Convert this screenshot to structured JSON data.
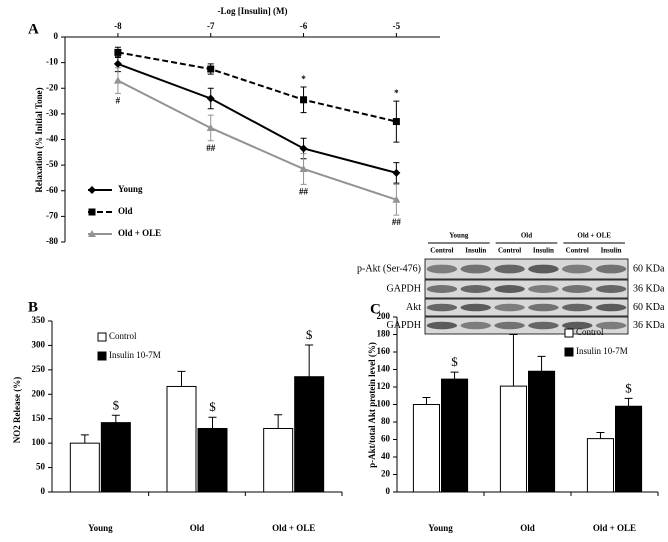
{
  "chart_data": [
    {
      "type": "line",
      "panel_label": "A",
      "x_label": "-Log [Insulin] (M)",
      "y_label": "Relaxation (% Initial Tone)",
      "x": [
        -8,
        -7,
        -6,
        -5
      ],
      "xlim": [
        -8.57,
        -4.53
      ],
      "xticks": [
        -8,
        -7,
        -6,
        -5
      ],
      "ylim": [
        -80,
        0
      ],
      "yticks": [
        0,
        -10,
        -20,
        -30,
        -40,
        -50,
        -60,
        -70,
        -80
      ],
      "legend": "left",
      "series": [
        {
          "name": "Young",
          "color": "#000000",
          "dash": "solid",
          "marker": "diamond",
          "values": [
            -10.5,
            -24,
            -43.5,
            -53
          ],
          "errors": [
            3,
            4,
            4,
            4
          ]
        },
        {
          "name": "Old",
          "color": "#000000",
          "dash": "dashed",
          "marker": "square",
          "values": [
            -6,
            -12.5,
            -24.5,
            -33
          ],
          "errors": [
            2,
            2,
            5,
            8
          ],
          "annotations": [
            null,
            null,
            "*",
            "*"
          ]
        },
        {
          "name": "Old + OLE",
          "color": "#939393",
          "dash": "solid",
          "marker": "triangle",
          "values": [
            -17,
            -35.5,
            -51.5,
            -63.5
          ],
          "errors": [
            5,
            5,
            6,
            6
          ],
          "annotations": [
            "#",
            "##",
            "##",
            "##"
          ]
        }
      ]
    },
    {
      "type": "bar",
      "panel_label": "B",
      "y_label": "NO2 Release (%)",
      "categories": [
        "Young",
        "Old",
        "Old + OLE"
      ],
      "ylim": [
        0,
        350
      ],
      "yticks": [
        0,
        50,
        100,
        150,
        200,
        250,
        300,
        350
      ],
      "legend": "upper left",
      "series": [
        {
          "name": "Control",
          "color": "#ffffff",
          "values": [
            100,
            216,
            130
          ],
          "errors": [
            17,
            31,
            28
          ]
        },
        {
          "name": "Insulin 10-7M",
          "color": "#000000",
          "values": [
            142,
            130,
            236
          ],
          "errors": [
            15,
            23,
            65
          ],
          "annotations": [
            "$",
            "$",
            "$"
          ]
        }
      ]
    },
    {
      "type": "bar",
      "panel_label": "C",
      "y_label": "p-Akt/total Akt protein level (%)",
      "categories": [
        "Young",
        "Old",
        "Old + OLE"
      ],
      "ylim": [
        0,
        200
      ],
      "yticks": [
        0,
        20,
        40,
        60,
        80,
        100,
        120,
        140,
        160,
        180,
        200
      ],
      "legend": "upper right",
      "series": [
        {
          "name": "Control",
          "color": "#ffffff",
          "values": [
            100,
            121,
            61
          ],
          "errors": [
            8,
            59,
            7
          ]
        },
        {
          "name": "Insulin 10-7M",
          "color": "#000000",
          "values": [
            129,
            138,
            98
          ],
          "errors": [
            8,
            17,
            9
          ],
          "annotations": [
            "$",
            null,
            "$"
          ]
        }
      ]
    }
  ],
  "blot": {
    "groups": [
      "Young",
      "Old",
      "Old + OLE"
    ],
    "lanes": [
      "Control",
      "Insulin",
      "Control",
      "Insulin",
      "Control",
      "Insulin"
    ],
    "rows": [
      {
        "label": "p-Akt (Ser-476)",
        "size": "60 KDa"
      },
      {
        "label": "GAPDH",
        "size": "36 KDa"
      },
      {
        "label": "Akt",
        "size": "60 KDa"
      },
      {
        "label": "GAPDH",
        "size": "36 KDa"
      }
    ]
  }
}
